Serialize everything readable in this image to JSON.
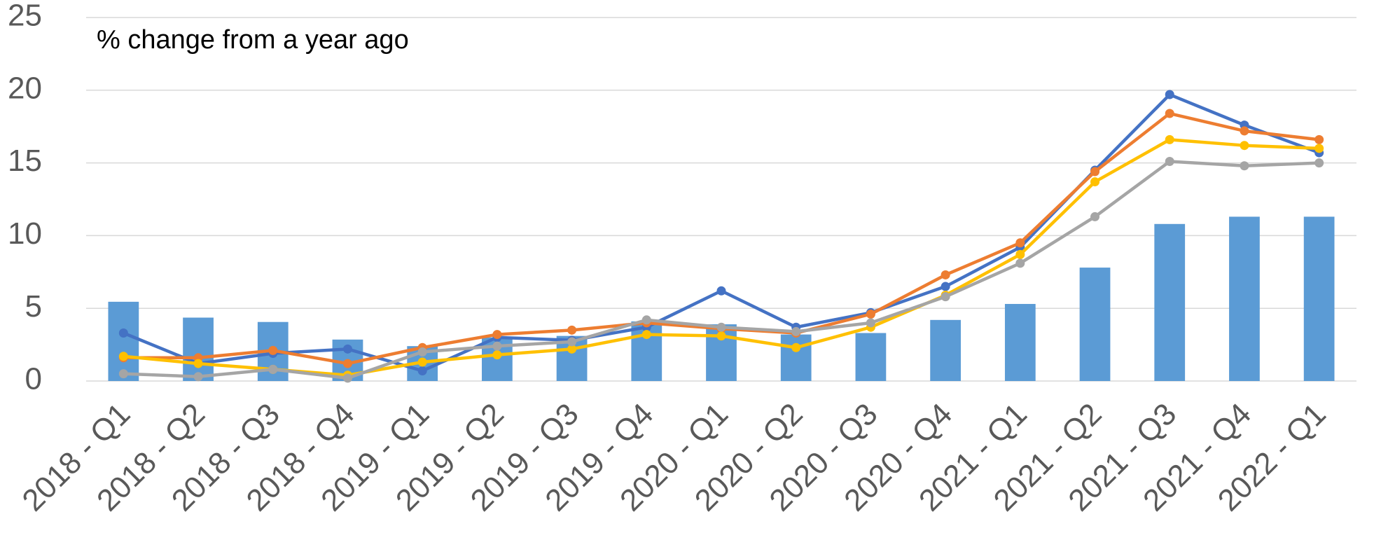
{
  "chart_data": {
    "type": "bar_line",
    "subtitle": "% change from a year ago",
    "categories": [
      "2018 - Q1",
      "2018 - Q2",
      "2018 - Q3",
      "2018 - Q4",
      "2019 - Q1",
      "2019 - Q2",
      "2019 - Q3",
      "2019 - Q4",
      "2020 - Q1",
      "2020 - Q2",
      "2020 - Q3",
      "2020 - Q4",
      "2021 - Q1",
      "2021 - Q2",
      "2021 - Q3",
      "2021 - Q4",
      "2022 - Q1"
    ],
    "bars": {
      "color": "#5b9bd5",
      "values": [
        5.45,
        4.36,
        4.06,
        2.85,
        2.4,
        3.0,
        3.1,
        4.1,
        3.9,
        3.2,
        3.3,
        4.2,
        5.3,
        7.8,
        10.8,
        11.3,
        11.3
      ]
    },
    "series": [
      {
        "color": "#4472c4",
        "values": [
          3.3,
          1.2,
          1.9,
          2.2,
          0.7,
          3.0,
          2.8,
          3.7,
          6.2,
          3.7,
          4.7,
          6.5,
          9.2,
          14.5,
          19.7,
          17.6,
          15.7
        ]
      },
      {
        "color": "#ed7d31",
        "values": [
          1.6,
          1.6,
          2.1,
          1.2,
          2.3,
          3.2,
          3.5,
          4.0,
          3.6,
          3.3,
          4.6,
          7.3,
          9.5,
          14.4,
          18.4,
          17.2,
          16.6
        ]
      },
      {
        "color": "#ffc000",
        "values": [
          1.7,
          1.2,
          0.8,
          0.4,
          1.3,
          1.8,
          2.2,
          3.2,
          3.1,
          2.3,
          3.7,
          5.9,
          8.7,
          13.7,
          16.6,
          16.2,
          16.0
        ]
      },
      {
        "color": "#a5a5a5",
        "values": [
          0.5,
          0.3,
          0.8,
          0.2,
          2.0,
          2.4,
          2.7,
          4.2,
          3.7,
          3.4,
          4.0,
          5.8,
          8.1,
          11.3,
          15.1,
          14.8,
          15.0
        ]
      }
    ],
    "ylim": [
      0,
      25
    ],
    "yticks": [
      0,
      5,
      10,
      15,
      20,
      25
    ],
    "grid": true
  }
}
